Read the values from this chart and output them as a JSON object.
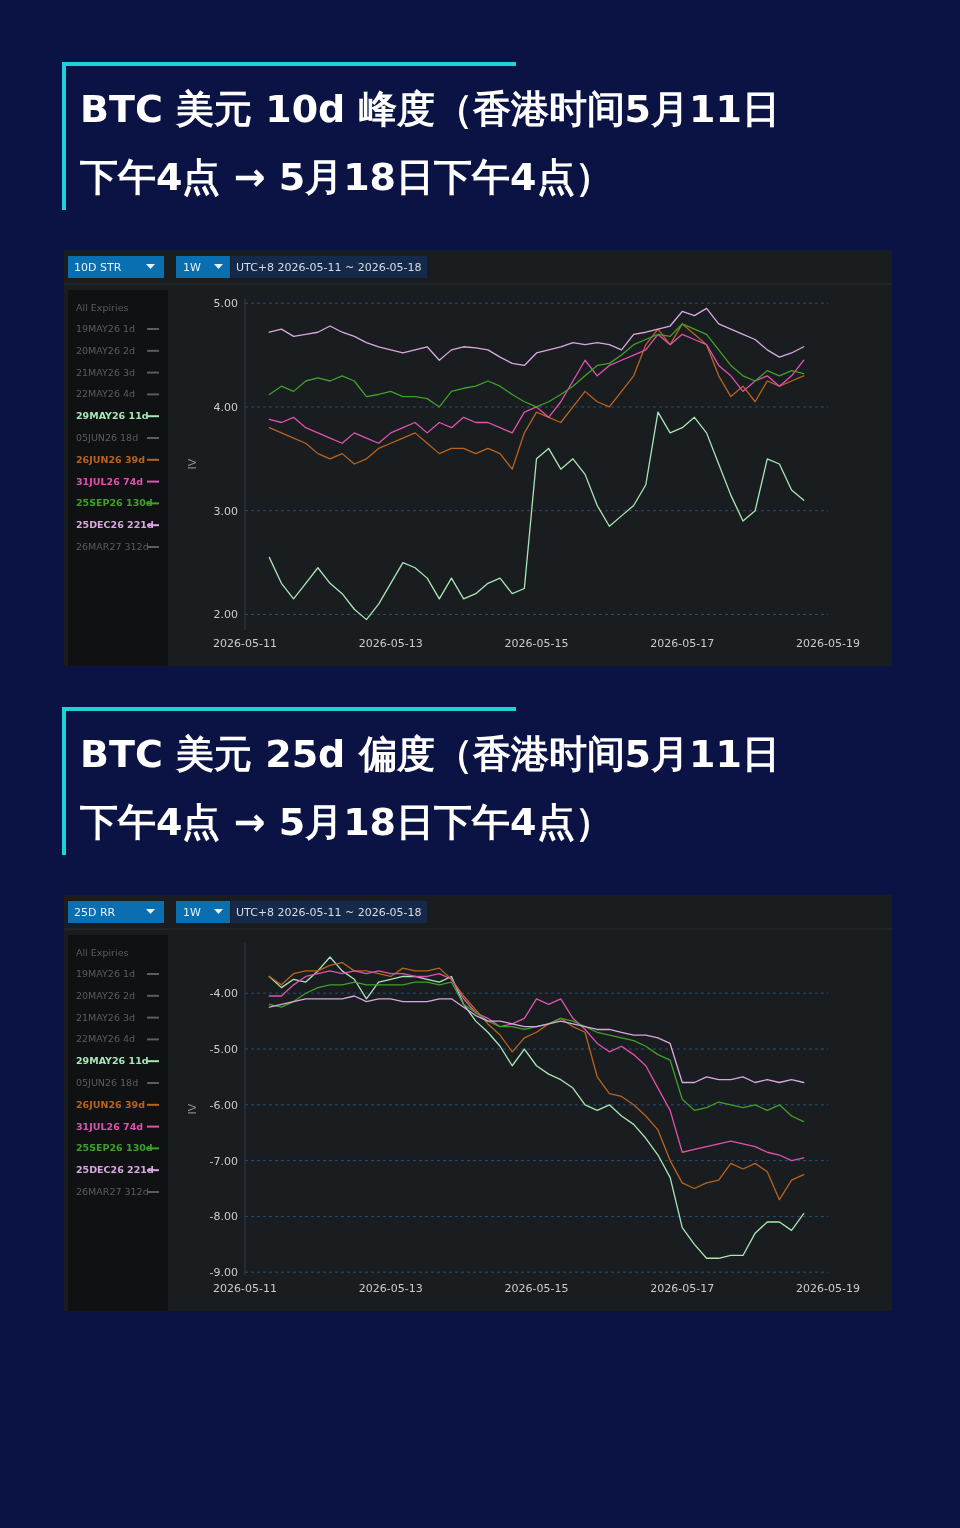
{
  "chart_data": [
    {
      "type": "line",
      "title": "BTC 美元 10d 峰度（香港时间5月11日下午4点 → 5月18日下午4点）",
      "ylabel": "IV",
      "legend_title": "All Expiries",
      "legend": "left",
      "grid": "y",
      "line_style": "solid",
      "marker": "none",
      "annotations": [
        "10D STR",
        "1W",
        "UTC+8 2026-05-11 ~ 2026-05-18"
      ],
      "xlim": [
        "2026-05-11",
        "2026-05-19"
      ],
      "xticks": [
        "2026-05-11",
        "2026-05-13",
        "2026-05-15",
        "2026-05-17",
        "2026-05-19"
      ],
      "ylim": [
        1.85,
        5.05
      ],
      "yticks": [
        {
          "value": 2,
          "label": "2.00"
        },
        {
          "value": 3,
          "label": "3.00"
        },
        {
          "value": 4,
          "label": "4.00"
        },
        {
          "value": 5,
          "label": "5.00"
        }
      ],
      "x": [
        "2026-05-11T08:00",
        "2026-05-11T12:00",
        "2026-05-11T16:00",
        "2026-05-11T20:00",
        "2026-05-12T00:00",
        "2026-05-12T04:00",
        "2026-05-12T08:00",
        "2026-05-12T12:00",
        "2026-05-12T16:00",
        "2026-05-12T20:00",
        "2026-05-13T00:00",
        "2026-05-13T04:00",
        "2026-05-13T08:00",
        "2026-05-13T12:00",
        "2026-05-13T16:00",
        "2026-05-13T20:00",
        "2026-05-14T00:00",
        "2026-05-14T04:00",
        "2026-05-14T08:00",
        "2026-05-14T12:00",
        "2026-05-14T16:00",
        "2026-05-14T20:00",
        "2026-05-15T00:00",
        "2026-05-15T04:00",
        "2026-05-15T08:00",
        "2026-05-15T12:00",
        "2026-05-15T16:00",
        "2026-05-15T20:00",
        "2026-05-16T00:00",
        "2026-05-16T04:00",
        "2026-05-16T08:00",
        "2026-05-16T12:00",
        "2026-05-16T16:00",
        "2026-05-16T20:00",
        "2026-05-17T00:00",
        "2026-05-17T04:00",
        "2026-05-17T08:00",
        "2026-05-17T12:00",
        "2026-05-17T16:00",
        "2026-05-17T20:00",
        "2026-05-18T00:00",
        "2026-05-18T04:00",
        "2026-05-18T08:00",
        "2026-05-18T12:00",
        "2026-05-18T16:00"
      ],
      "series": [
        {
          "name": "19MAY26 1d",
          "color": "#5a5d61",
          "values": [
            null,
            null,
            null,
            null,
            null,
            null,
            null,
            null,
            null,
            null,
            null,
            null,
            null,
            null,
            null,
            null,
            null,
            null,
            null,
            null,
            null,
            null,
            null,
            null,
            null,
            null,
            null,
            null,
            null,
            null,
            null,
            null,
            null,
            null,
            null,
            null,
            null,
            null,
            null,
            null,
            null,
            null,
            null,
            null,
            null
          ]
        },
        {
          "name": "20MAY26 2d",
          "color": "#5a5d61",
          "values": [
            null,
            null,
            null,
            null,
            null,
            null,
            null,
            null,
            null,
            null,
            null,
            null,
            null,
            null,
            null,
            null,
            null,
            null,
            null,
            null,
            null,
            null,
            null,
            null,
            null,
            null,
            null,
            null,
            null,
            null,
            null,
            null,
            null,
            null,
            null,
            null,
            null,
            null,
            null,
            null,
            null,
            null,
            null,
            null,
            null
          ]
        },
        {
          "name": "21MAY26 3d",
          "color": "#5a5d61",
          "values": [
            null,
            null,
            null,
            null,
            null,
            null,
            null,
            null,
            null,
            null,
            null,
            null,
            null,
            null,
            null,
            null,
            null,
            null,
            null,
            null,
            null,
            null,
            null,
            null,
            null,
            null,
            null,
            null,
            null,
            null,
            null,
            null,
            null,
            null,
            null,
            null,
            null,
            null,
            null,
            null,
            null,
            null,
            null,
            null,
            null
          ]
        },
        {
          "name": "22MAY26 4d",
          "color": "#5a5d61",
          "values": [
            null,
            null,
            null,
            null,
            null,
            null,
            null,
            null,
            null,
            null,
            null,
            null,
            null,
            null,
            null,
            null,
            null,
            null,
            null,
            null,
            null,
            null,
            null,
            null,
            null,
            null,
            null,
            null,
            null,
            null,
            null,
            null,
            null,
            null,
            null,
            null,
            null,
            null,
            null,
            null,
            null,
            null,
            null,
            null,
            null
          ]
        },
        {
          "name": "29MAY26 11d",
          "color": "#a8e6b8",
          "values": [
            2.55,
            2.3,
            2.15,
            2.3,
            2.45,
            2.3,
            2.2,
            2.05,
            1.95,
            2.1,
            2.3,
            2.5,
            2.45,
            2.35,
            2.15,
            2.35,
            2.15,
            2.2,
            2.3,
            2.35,
            2.2,
            2.25,
            3.5,
            3.6,
            3.4,
            3.5,
            3.35,
            3.05,
            2.85,
            2.95,
            3.05,
            3.25,
            3.95,
            3.75,
            3.8,
            3.9,
            3.75,
            3.45,
            3.15,
            2.9,
            3.0,
            3.5,
            3.45,
            3.2,
            3.1
          ]
        },
        {
          "name": "05JUN26 18d",
          "color": "#5a5d61",
          "values": [
            null,
            null,
            null,
            null,
            null,
            null,
            null,
            null,
            null,
            null,
            null,
            null,
            null,
            null,
            null,
            null,
            null,
            null,
            null,
            null,
            null,
            null,
            null,
            null,
            null,
            null,
            null,
            null,
            null,
            null,
            null,
            null,
            null,
            null,
            null,
            null,
            null,
            null,
            null,
            null,
            null,
            null,
            null,
            null,
            null
          ]
        },
        {
          "name": "26JUN26 39d",
          "color": "#b8641f",
          "values": [
            3.8,
            3.75,
            3.7,
            3.65,
            3.55,
            3.5,
            3.55,
            3.45,
            3.5,
            3.6,
            3.65,
            3.7,
            3.75,
            3.65,
            3.55,
            3.6,
            3.6,
            3.55,
            3.6,
            3.55,
            3.4,
            3.75,
            3.95,
            3.9,
            3.85,
            4.0,
            4.15,
            4.05,
            4.0,
            4.15,
            4.3,
            4.6,
            4.75,
            4.6,
            4.8,
            4.7,
            4.6,
            4.3,
            4.1,
            4.2,
            4.05,
            4.25,
            4.2,
            4.25,
            4.3
          ]
        },
        {
          "name": "31JUL26 74d",
          "color": "#e052b0",
          "values": [
            3.88,
            3.85,
            3.9,
            3.8,
            3.75,
            3.7,
            3.65,
            3.75,
            3.7,
            3.65,
            3.75,
            3.8,
            3.85,
            3.75,
            3.85,
            3.8,
            3.9,
            3.85,
            3.85,
            3.8,
            3.75,
            3.95,
            4.0,
            3.9,
            4.05,
            4.25,
            4.45,
            4.3,
            4.4,
            4.45,
            4.5,
            4.55,
            4.7,
            4.6,
            4.7,
            4.65,
            4.6,
            4.4,
            4.3,
            4.15,
            4.25,
            4.3,
            4.2,
            4.3,
            4.45
          ]
        },
        {
          "name": "25SEP26 130d",
          "color": "#3fa02a",
          "values": [
            4.12,
            4.2,
            4.15,
            4.25,
            4.28,
            4.25,
            4.3,
            4.25,
            4.1,
            4.12,
            4.15,
            4.1,
            4.1,
            4.08,
            4.0,
            4.15,
            4.18,
            4.2,
            4.25,
            4.2,
            4.12,
            4.05,
            4.0,
            4.05,
            4.12,
            4.2,
            4.3,
            4.4,
            4.42,
            4.5,
            4.6,
            4.65,
            4.7,
            4.68,
            4.8,
            4.75,
            4.7,
            4.55,
            4.4,
            4.3,
            4.25,
            4.35,
            4.3,
            4.35,
            4.32
          ]
        },
        {
          "name": "25DEC26 221d",
          "color": "#d9a8e0",
          "values": [
            4.72,
            4.75,
            4.68,
            4.7,
            4.72,
            4.78,
            4.72,
            4.68,
            4.62,
            4.58,
            4.55,
            4.52,
            4.55,
            4.58,
            4.45,
            4.55,
            4.58,
            4.57,
            4.55,
            4.48,
            4.42,
            4.4,
            4.52,
            4.55,
            4.58,
            4.62,
            4.6,
            4.62,
            4.6,
            4.55,
            4.7,
            4.72,
            4.75,
            4.78,
            4.92,
            4.88,
            4.95,
            4.8,
            4.75,
            4.7,
            4.65,
            4.55,
            4.48,
            4.52,
            4.58
          ]
        },
        {
          "name": "26MAR27 312d",
          "color": "#5a5d61",
          "values": [
            null,
            null,
            null,
            null,
            null,
            null,
            null,
            null,
            null,
            null,
            null,
            null,
            null,
            null,
            null,
            null,
            null,
            null,
            null,
            null,
            null,
            null,
            null,
            null,
            null,
            null,
            null,
            null,
            null,
            null,
            null,
            null,
            null,
            null,
            null,
            null,
            null,
            null,
            null,
            null,
            null,
            null,
            null,
            null,
            null
          ]
        }
      ]
    },
    {
      "type": "line",
      "title": "BTC 美元 25d 偏度（香港时间5月11日下午4点 → 5月18日下午4点）",
      "ylabel": "IV",
      "legend_title": "All Expiries",
      "legend": "left",
      "grid": "y",
      "line_style": "solid",
      "marker": "none",
      "annotations": [
        "25D RR",
        "1W",
        "UTC+8 2026-05-11 ~ 2026-05-18"
      ],
      "xlim": [
        "2026-05-11",
        "2026-05-19"
      ],
      "xticks": [
        "2026-05-11",
        "2026-05-13",
        "2026-05-15",
        "2026-05-17",
        "2026-05-19"
      ],
      "ylim": [
        -9.05,
        -3.1
      ],
      "yticks": [
        {
          "value": -9,
          "label": "-9.00"
        },
        {
          "value": -8,
          "label": "-8.00"
        },
        {
          "value": -7,
          "label": "-7.00"
        },
        {
          "value": -6,
          "label": "-6.00"
        },
        {
          "value": -5,
          "label": "-5.00"
        },
        {
          "value": -4,
          "label": "-4.00"
        }
      ],
      "x": [
        "2026-05-11T08:00",
        "2026-05-11T12:00",
        "2026-05-11T16:00",
        "2026-05-11T20:00",
        "2026-05-12T00:00",
        "2026-05-12T04:00",
        "2026-05-12T08:00",
        "2026-05-12T12:00",
        "2026-05-12T16:00",
        "2026-05-12T20:00",
        "2026-05-13T00:00",
        "2026-05-13T04:00",
        "2026-05-13T08:00",
        "2026-05-13T12:00",
        "2026-05-13T16:00",
        "2026-05-13T20:00",
        "2026-05-14T00:00",
        "2026-05-14T04:00",
        "2026-05-14T08:00",
        "2026-05-14T12:00",
        "2026-05-14T16:00",
        "2026-05-14T20:00",
        "2026-05-15T00:00",
        "2026-05-15T04:00",
        "2026-05-15T08:00",
        "2026-05-15T12:00",
        "2026-05-15T16:00",
        "2026-05-15T20:00",
        "2026-05-16T00:00",
        "2026-05-16T04:00",
        "2026-05-16T08:00",
        "2026-05-16T12:00",
        "2026-05-16T16:00",
        "2026-05-16T20:00",
        "2026-05-17T00:00",
        "2026-05-17T04:00",
        "2026-05-17T08:00",
        "2026-05-17T12:00",
        "2026-05-17T16:00",
        "2026-05-17T20:00",
        "2026-05-18T00:00",
        "2026-05-18T04:00",
        "2026-05-18T08:00",
        "2026-05-18T12:00",
        "2026-05-18T16:00"
      ],
      "series": [
        {
          "name": "19MAY26 1d",
          "color": "#5a5d61",
          "values": [
            null,
            null,
            null,
            null,
            null,
            null,
            null,
            null,
            null,
            null,
            null,
            null,
            null,
            null,
            null,
            null,
            null,
            null,
            null,
            null,
            null,
            null,
            null,
            null,
            null,
            null,
            null,
            null,
            null,
            null,
            null,
            null,
            null,
            null,
            null,
            null,
            null,
            null,
            null,
            null,
            null,
            null,
            null,
            null,
            null
          ]
        },
        {
          "name": "20MAY26 2d",
          "color": "#5a5d61",
          "values": [
            null,
            null,
            null,
            null,
            null,
            null,
            null,
            null,
            null,
            null,
            null,
            null,
            null,
            null,
            null,
            null,
            null,
            null,
            null,
            null,
            null,
            null,
            null,
            null,
            null,
            null,
            null,
            null,
            null,
            null,
            null,
            null,
            null,
            null,
            null,
            null,
            null,
            null,
            null,
            null,
            null,
            null,
            null,
            null,
            null
          ]
        },
        {
          "name": "21MAY26 3d",
          "color": "#5a5d61",
          "values": [
            null,
            null,
            null,
            null,
            null,
            null,
            null,
            null,
            null,
            null,
            null,
            null,
            null,
            null,
            null,
            null,
            null,
            null,
            null,
            null,
            null,
            null,
            null,
            null,
            null,
            null,
            null,
            null,
            null,
            null,
            null,
            null,
            null,
            null,
            null,
            null,
            null,
            null,
            null,
            null,
            null,
            null,
            null,
            null,
            null
          ]
        },
        {
          "name": "22MAY26 4d",
          "color": "#5a5d61",
          "values": [
            null,
            null,
            null,
            null,
            null,
            null,
            null,
            null,
            null,
            null,
            null,
            null,
            null,
            null,
            null,
            null,
            null,
            null,
            null,
            null,
            null,
            null,
            null,
            null,
            null,
            null,
            null,
            null,
            null,
            null,
            null,
            null,
            null,
            null,
            null,
            null,
            null,
            null,
            null,
            null,
            null,
            null,
            null,
            null,
            null
          ]
        },
        {
          "name": "29MAY26 11d",
          "color": "#a8e6b8",
          "values": [
            -3.7,
            -3.9,
            -3.75,
            -3.8,
            -3.6,
            -3.35,
            -3.6,
            -3.75,
            -4.1,
            -3.8,
            -3.75,
            -3.7,
            -3.7,
            -3.75,
            -3.8,
            -3.7,
            -4.2,
            -4.5,
            -4.7,
            -4.95,
            -5.3,
            -5.0,
            -5.3,
            -5.45,
            -5.55,
            -5.7,
            -6.0,
            -6.1,
            -6.0,
            -6.2,
            -6.35,
            -6.6,
            -6.9,
            -7.3,
            -8.2,
            -8.5,
            -8.75,
            -8.75,
            -8.7,
            -8.7,
            -8.3,
            -8.1,
            -8.1,
            -8.25,
            -7.95
          ]
        },
        {
          "name": "05JUN26 18d",
          "color": "#5a5d61",
          "values": [
            null,
            null,
            null,
            null,
            null,
            null,
            null,
            null,
            null,
            null,
            null,
            null,
            null,
            null,
            null,
            null,
            null,
            null,
            null,
            null,
            null,
            null,
            null,
            null,
            null,
            null,
            null,
            null,
            null,
            null,
            null,
            null,
            null,
            null,
            null,
            null,
            null,
            null,
            null,
            null,
            null,
            null,
            null,
            null,
            null
          ]
        },
        {
          "name": "26JUN26 39d",
          "color": "#b8641f",
          "values": [
            -3.7,
            -3.85,
            -3.65,
            -3.6,
            -3.6,
            -3.5,
            -3.45,
            -3.6,
            -3.6,
            -3.65,
            -3.7,
            -3.55,
            -3.6,
            -3.6,
            -3.55,
            -3.75,
            -4.05,
            -4.3,
            -4.55,
            -4.75,
            -5.05,
            -4.8,
            -4.7,
            -4.55,
            -4.45,
            -4.6,
            -4.7,
            -5.5,
            -5.8,
            -5.85,
            -6.0,
            -6.2,
            -6.45,
            -7.0,
            -7.4,
            -7.5,
            -7.4,
            -7.35,
            -7.05,
            -7.15,
            -7.05,
            -7.2,
            -7.7,
            -7.35,
            -7.25
          ]
        },
        {
          "name": "31JUL26 74d",
          "color": "#e052b0",
          "values": [
            -4.05,
            -4.05,
            -3.85,
            -3.7,
            -3.65,
            -3.6,
            -3.65,
            -3.6,
            -3.65,
            -3.6,
            -3.65,
            -3.65,
            -3.7,
            -3.7,
            -3.65,
            -3.75,
            -4.1,
            -4.35,
            -4.45,
            -4.6,
            -4.55,
            -4.45,
            -4.1,
            -4.2,
            -4.1,
            -4.45,
            -4.65,
            -4.9,
            -5.05,
            -4.95,
            -5.1,
            -5.3,
            -5.7,
            -6.1,
            -6.85,
            -6.8,
            -6.75,
            -6.7,
            -6.65,
            -6.7,
            -6.75,
            -6.85,
            -6.9,
            -7.0,
            -6.95
          ]
        },
        {
          "name": "25SEP26 130d",
          "color": "#3fa02a",
          "values": [
            -4.2,
            -4.25,
            -4.15,
            -4.0,
            -3.9,
            -3.85,
            -3.85,
            -3.8,
            -3.85,
            -3.85,
            -3.85,
            -3.85,
            -3.8,
            -3.8,
            -3.85,
            -3.8,
            -4.2,
            -4.35,
            -4.5,
            -4.6,
            -4.6,
            -4.65,
            -4.6,
            -4.55,
            -4.45,
            -4.5,
            -4.6,
            -4.7,
            -4.75,
            -4.8,
            -4.85,
            -4.95,
            -5.1,
            -5.2,
            -5.9,
            -6.1,
            -6.05,
            -5.95,
            -6.0,
            -6.05,
            -6.0,
            -6.1,
            -6.0,
            -6.2,
            -6.3
          ]
        },
        {
          "name": "25DEC26 221d",
          "color": "#d9a8e0",
          "values": [
            -4.25,
            -4.2,
            -4.15,
            -4.1,
            -4.1,
            -4.1,
            -4.1,
            -4.05,
            -4.15,
            -4.1,
            -4.1,
            -4.15,
            -4.15,
            -4.15,
            -4.1,
            -4.1,
            -4.25,
            -4.4,
            -4.5,
            -4.5,
            -4.55,
            -4.6,
            -4.6,
            -4.55,
            -4.5,
            -4.55,
            -4.6,
            -4.65,
            -4.65,
            -4.7,
            -4.75,
            -4.75,
            -4.8,
            -4.9,
            -5.6,
            -5.6,
            -5.5,
            -5.55,
            -5.55,
            -5.5,
            -5.6,
            -5.55,
            -5.6,
            -5.55,
            -5.6
          ]
        },
        {
          "name": "26MAR27 312d",
          "color": "#5a5d61",
          "values": [
            null,
            null,
            null,
            null,
            null,
            null,
            null,
            null,
            null,
            null,
            null,
            null,
            null,
            null,
            null,
            null,
            null,
            null,
            null,
            null,
            null,
            null,
            null,
            null,
            null,
            null,
            null,
            null,
            null,
            null,
            null,
            null,
            null,
            null,
            null,
            null,
            null,
            null,
            null,
            null,
            null,
            null,
            null,
            null,
            null
          ]
        }
      ]
    }
  ]
}
